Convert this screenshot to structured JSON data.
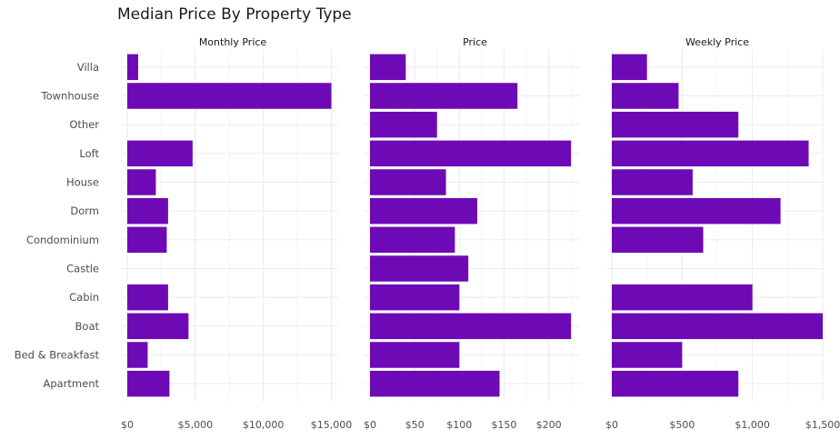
{
  "chart_data": {
    "type": "bar",
    "orientation": "horizontal",
    "title": "Median Price By Property Type",
    "bar_color": "#6d0ab5",
    "grid": true,
    "categories": [
      "Villa",
      "Townhouse",
      "Other",
      "Loft",
      "House",
      "Dorm",
      "Condominium",
      "Castle",
      "Cabin",
      "Boat",
      "Bed & Breakfast",
      "Apartment"
    ],
    "panels": [
      {
        "name": "Monthly Price",
        "xlim": [
          0,
          15500
        ],
        "ticks": [
          0,
          5000,
          10000,
          15000
        ],
        "tick_labels": [
          "$0",
          "$5,000",
          "$10,000",
          "$15,000"
        ],
        "values": [
          800,
          15000,
          null,
          4800,
          2100,
          3000,
          null,
          null,
          3000,
          4500,
          1500,
          3100
        ],
        "values_note": "Condominium ~2900",
        "values_full": [
          800,
          15000,
          null,
          4800,
          2100,
          3000,
          2900,
          null,
          3000,
          4500,
          1500,
          3100
        ]
      },
      {
        "name": "Price",
        "xlim": [
          0,
          235
        ],
        "ticks": [
          0,
          50,
          100,
          150,
          200
        ],
        "tick_labels": [
          "$0",
          "$50",
          "$100",
          "$150",
          "$200"
        ],
        "values_full": [
          40,
          165,
          75,
          225,
          85,
          120,
          95,
          110,
          100,
          225,
          100,
          145
        ]
      },
      {
        "name": "Weekly Price",
        "xlim": [
          0,
          1500
        ],
        "ticks": [
          0,
          500,
          1000,
          1500
        ],
        "tick_labels": [
          "$0",
          "$500",
          "$1,000",
          "$1,500"
        ],
        "values_full": [
          250,
          475,
          900,
          1400,
          575,
          1200,
          650,
          null,
          1000,
          1500,
          500,
          900
        ]
      }
    ]
  }
}
